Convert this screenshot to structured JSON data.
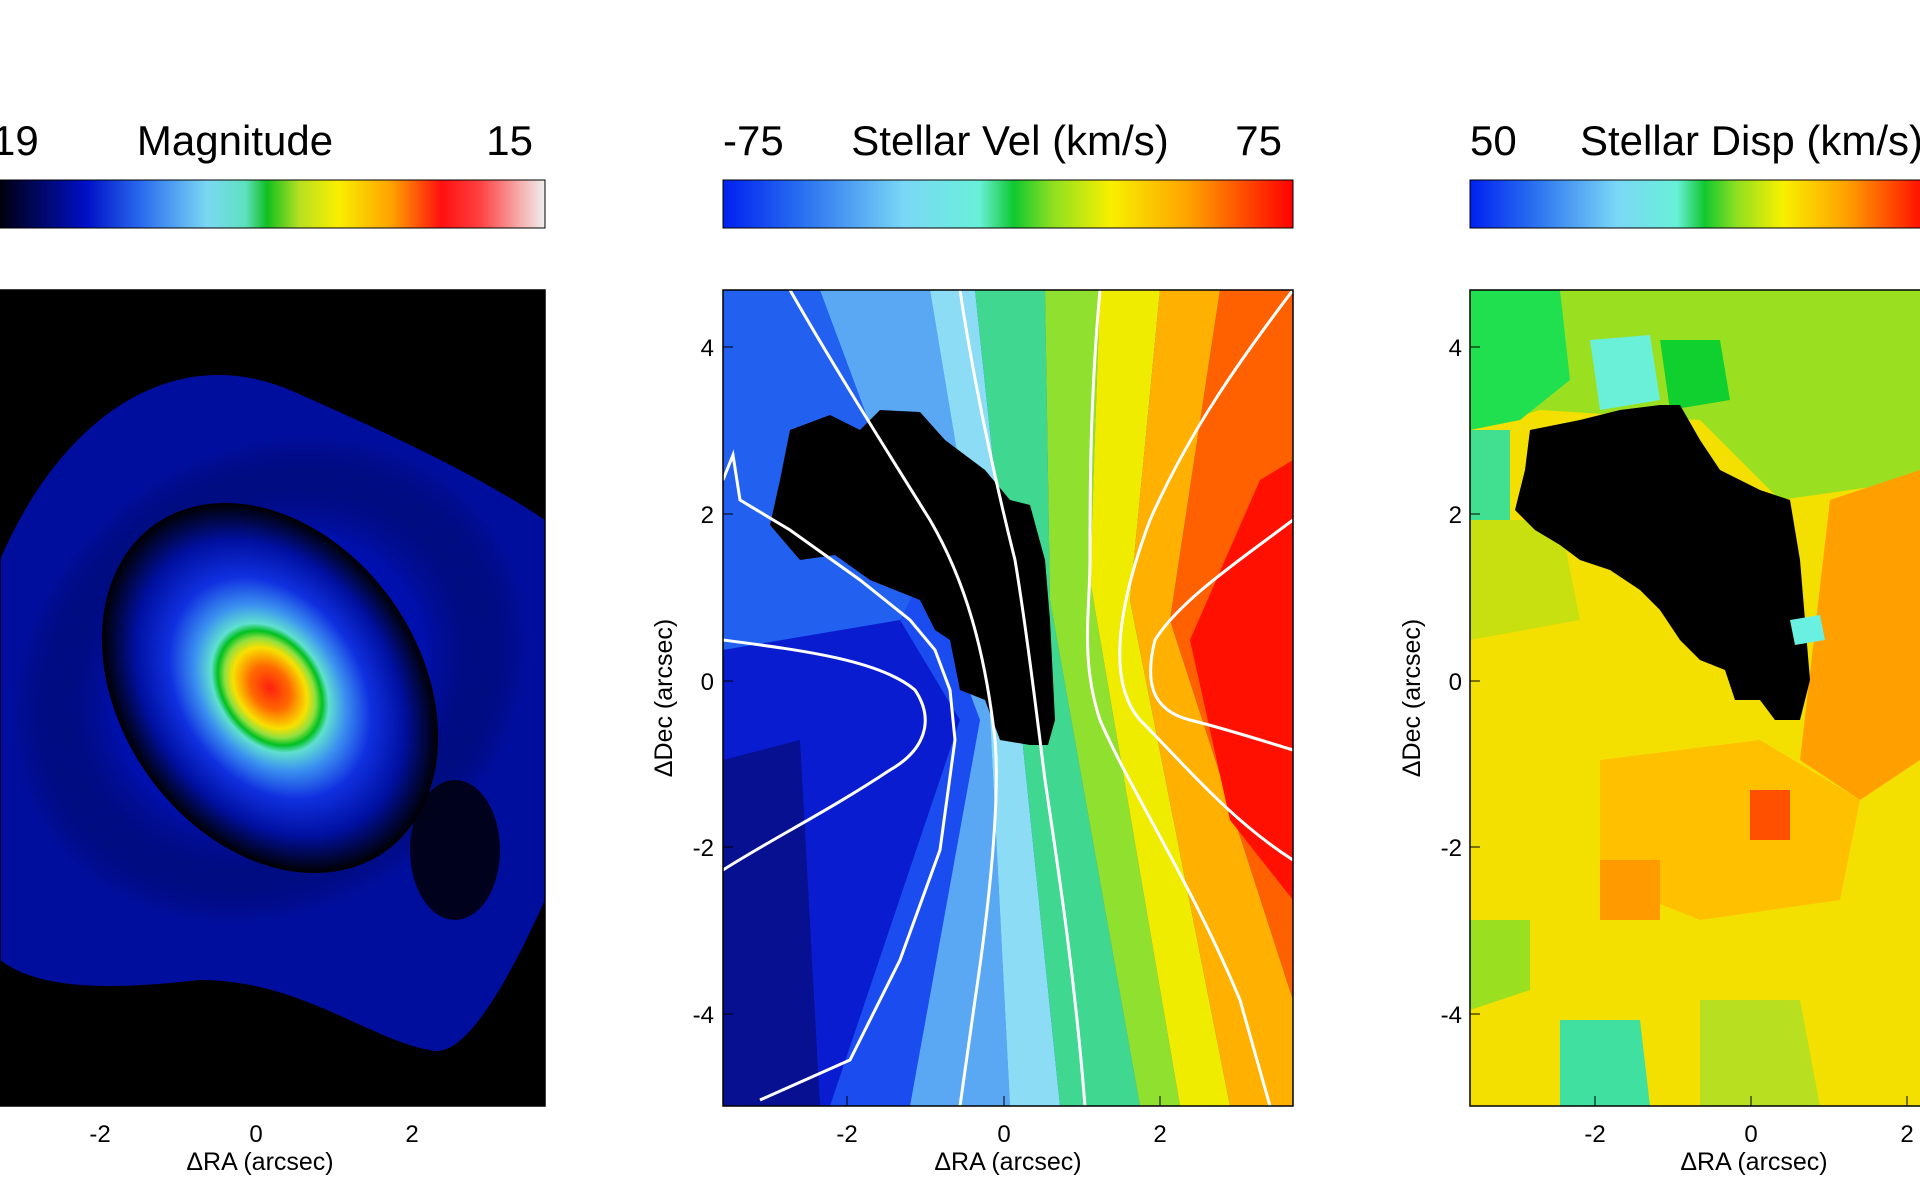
{
  "chart_data": [
    {
      "type": "heatmap",
      "colorbar": {
        "min_label": "19",
        "max_label": "15",
        "title": "Magnitude"
      },
      "xlabel": "ΔRA (arcsec)",
      "ylabel": "",
      "xticks": [
        "-2",
        "0",
        "2"
      ],
      "yticks": [],
      "xlim": [
        -3.7,
        3.7
      ],
      "ylim": [
        -5.0,
        4.7
      ],
      "colormap": "black-blue-cyan-green-yellow-red-white",
      "features": {
        "peak_center": [
          0.2,
          0.0
        ],
        "outer_level": "blue",
        "core_level": "red"
      }
    },
    {
      "type": "heatmap",
      "colorbar": {
        "min_label": "-75",
        "max_label": "75",
        "title": "Stellar Vel (km/s)"
      },
      "xlabel": "ΔRA (arcsec)",
      "ylabel": "ΔDec (arcsec)",
      "xticks": [
        "-2",
        "0",
        "2"
      ],
      "yticks": [
        "4",
        "2",
        "0",
        "-2",
        "-4"
      ],
      "xlim": [
        -3.6,
        3.6
      ],
      "ylim": [
        -5.0,
        4.7
      ],
      "range": [
        -75,
        75
      ],
      "masked_region_color": "#000000",
      "contour_color": "#ffffff"
    },
    {
      "type": "heatmap",
      "colorbar": {
        "min_label": "50",
        "max_label": "",
        "title": "Stellar Disp (km/s)"
      },
      "xlabel": "ΔRA (arcsec)",
      "ylabel": "ΔDec (arcsec)",
      "xticks": [
        "-2",
        "0",
        "2"
      ],
      "yticks": [
        "4",
        "2",
        "0",
        "-2",
        "-4"
      ],
      "xlim": [
        -3.6,
        3.6
      ],
      "ylim": [
        -5.0,
        4.7
      ],
      "masked_region_color": "#000000"
    }
  ]
}
